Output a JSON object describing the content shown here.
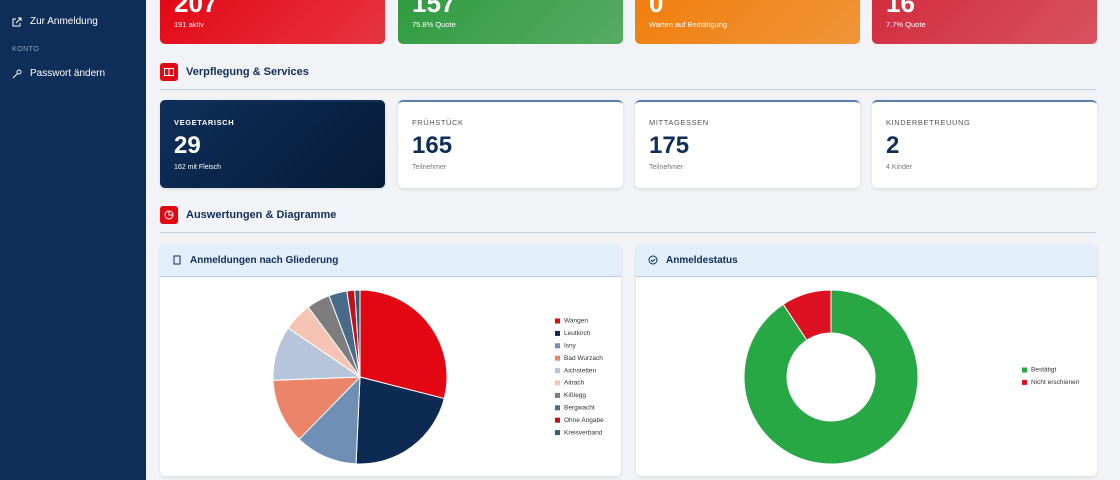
{
  "sidebar": {
    "items": [
      {
        "label": "Zur Anmeldung"
      }
    ],
    "section": "KONTO",
    "account_items": [
      {
        "label": "Passwort ändern"
      }
    ]
  },
  "stats": [
    {
      "value": 207,
      "sub": "191 aktiv",
      "color": "#e30613"
    },
    {
      "value": 157,
      "sub": "75.8% Quote",
      "color": "#2e9a3e"
    },
    {
      "value": 0,
      "sub": "Warten auf Bestätigung",
      "color": "#f07d0a"
    },
    {
      "value": 16,
      "sub": "7.7% Quote",
      "color": "#d22a3c"
    }
  ],
  "services": {
    "title": "Verpflegung & Services",
    "cards": [
      {
        "label": "VEGETARISCH",
        "value": 29,
        "sub": "162 mit Fleisch"
      },
      {
        "label": "FRÜHSTÜCK",
        "value": 165,
        "sub": "Teilnehmer"
      },
      {
        "label": "MITTAGESSEN",
        "value": 175,
        "sub": "Teilnehmer"
      },
      {
        "label": "KINDERBETREUUNG",
        "value": 2,
        "sub": "4 Kinder"
      }
    ]
  },
  "analysis": {
    "title": "Auswertungen & Diagramme"
  },
  "chart_data": [
    {
      "type": "pie",
      "title": "Anmeldungen nach Gliederung",
      "categories": [
        "Wangen",
        "Leutkirch",
        "Isny",
        "Bad Wurzach",
        "Aichstetten",
        "Aitrach",
        "Kißlegg",
        "Bergwacht",
        "Ohne Angabe",
        "Kreisverband"
      ],
      "values": [
        60,
        45,
        24,
        25,
        21,
        11,
        9,
        7,
        3,
        2
      ],
      "colors": [
        "#e30613",
        "#0d2a52",
        "#6f8fb5",
        "#ec8469",
        "#b7c5db",
        "#f6c4b4",
        "#7d7d7d",
        "#4a6a8a",
        "#c0101c",
        "#2f5f7a"
      ]
    },
    {
      "type": "donut",
      "title": "Anmeldestatus",
      "categories": [
        "Bestätigt",
        "Nicht erschienen"
      ],
      "values": [
        157,
        16
      ],
      "colors": [
        "#28a745",
        "#dc1020"
      ]
    }
  ]
}
